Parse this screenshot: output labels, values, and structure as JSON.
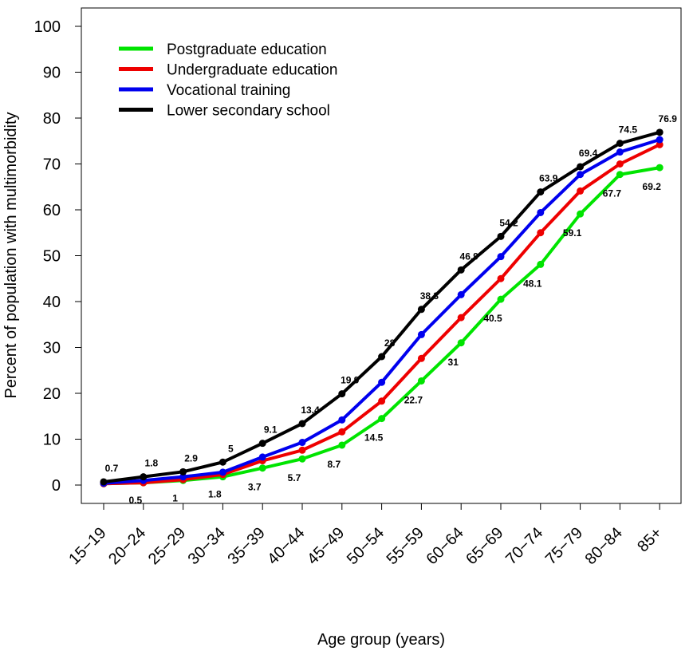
{
  "chart_data": {
    "type": "line",
    "xlabel": "Age group (years)",
    "ylabel": "Percent of population with multimorbidity",
    "categories": [
      "15−19",
      "20−24",
      "25−29",
      "30−34",
      "35−39",
      "40−44",
      "45−49",
      "50−54",
      "55−59",
      "60−64",
      "65−69",
      "70−74",
      "75−79",
      "80−84",
      "85+"
    ],
    "ylim": [
      0,
      100
    ],
    "yticks": [
      0,
      10,
      20,
      30,
      40,
      50,
      60,
      70,
      80,
      90,
      100
    ],
    "grid": false,
    "legend_position": "top-left",
    "series": [
      {
        "name": "Postgraduate education",
        "color": "#00e400",
        "values": [
          0.3,
          0.5,
          1,
          1.8,
          3.7,
          5.7,
          8.7,
          14.5,
          22.7,
          31,
          40.5,
          48.1,
          59.1,
          67.7,
          69.2
        ],
        "labels": [
          "",
          "0.5",
          "1",
          "1.8",
          "3.7",
          "5.7",
          "8.7",
          "14.5",
          "22.7",
          "31",
          "40.5",
          "48.1",
          "59.1",
          "67.7",
          "69.2"
        ]
      },
      {
        "name": "Undergraduate education",
        "color": "#ee0000",
        "values": [
          0.3,
          0.5,
          1.2,
          2.3,
          5.3,
          7.6,
          11.6,
          18.3,
          27.6,
          36.5,
          45,
          55,
          64.1,
          70,
          74.2
        ],
        "labels": []
      },
      {
        "name": "Vocational training",
        "color": "#0000ee",
        "values": [
          0.4,
          1.0,
          1.8,
          2.8,
          6.1,
          9.3,
          14.2,
          22.4,
          32.8,
          41.5,
          49.8,
          59.4,
          67.7,
          72.6,
          75.3
        ],
        "labels": []
      },
      {
        "name": "Lower secondary school",
        "color": "#000000",
        "values": [
          0.7,
          1.8,
          2.9,
          5,
          9.1,
          13.4,
          19.9,
          28,
          38.3,
          46.9,
          54.2,
          63.9,
          69.4,
          74.5,
          76.9
        ],
        "labels": [
          "0.7",
          "1.8",
          "2.9",
          "5",
          "9.1",
          "13.4",
          "19.9",
          "28",
          "38.3",
          "46.9",
          "54.2",
          "63.9",
          "69.4",
          "74.5",
          "76.9"
        ]
      }
    ]
  }
}
